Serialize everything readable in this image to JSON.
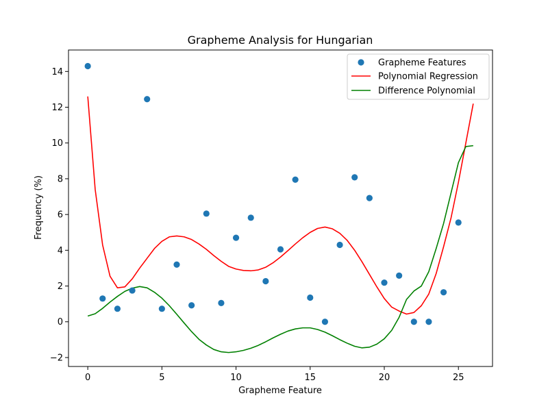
{
  "chart_data": {
    "type": "scatter",
    "title": "Grapheme Analysis for Hungarian",
    "xlabel": "Grapheme Feature",
    "ylabel": "Frequency (%)",
    "xlim": [
      -1.3,
      27.3
    ],
    "ylim": [
      -2.5,
      15.2
    ],
    "xticks": [
      0,
      5,
      10,
      15,
      20,
      25
    ],
    "yticks": [
      -2,
      0,
      2,
      4,
      6,
      8,
      10,
      12,
      14
    ],
    "grid": false,
    "legend_position": "top-right",
    "colors": {
      "scatter": "#1f77b4",
      "regression": "#ff0000",
      "difference": "#008000"
    },
    "series": [
      {
        "name": "Grapheme Features",
        "kind": "scatter",
        "x": [
          0,
          1,
          2,
          3,
          4,
          5,
          6,
          7,
          8,
          9,
          10,
          11,
          12,
          13,
          14,
          15,
          16,
          17,
          18,
          19,
          20,
          21,
          22,
          23,
          24,
          25
        ],
        "y": [
          14.3,
          1.3,
          0.73,
          1.75,
          12.45,
          0.73,
          3.2,
          0.92,
          6.05,
          1.05,
          4.7,
          5.82,
          2.27,
          4.05,
          7.95,
          1.35,
          0.0,
          4.3,
          8.08,
          6.92,
          2.19,
          2.58,
          0.0,
          0.0,
          1.65,
          5.55
        ]
      },
      {
        "name": "Polynomial Regression",
        "kind": "line",
        "x": [
          0,
          0.5,
          1,
          1.5,
          2,
          2.5,
          3,
          3.5,
          4,
          4.5,
          5,
          5.5,
          6,
          6.5,
          7,
          7.5,
          8,
          8.5,
          9,
          9.5,
          10,
          10.5,
          11,
          11.5,
          12,
          12.5,
          13,
          13.5,
          14,
          14.5,
          15,
          15.5,
          16,
          16.5,
          17,
          17.5,
          18,
          18.5,
          19,
          19.5,
          20,
          20.5,
          21,
          21.5,
          22,
          22.5,
          23,
          23.5,
          24,
          24.5,
          25,
          25.5,
          26
        ],
        "y": [
          12.6,
          7.4,
          4.3,
          2.55,
          1.9,
          1.95,
          2.4,
          3.0,
          3.55,
          4.1,
          4.5,
          4.75,
          4.8,
          4.75,
          4.6,
          4.35,
          4.05,
          3.7,
          3.38,
          3.1,
          2.95,
          2.87,
          2.85,
          2.9,
          3.05,
          3.3,
          3.62,
          3.98,
          4.35,
          4.7,
          5.0,
          5.22,
          5.3,
          5.2,
          4.95,
          4.55,
          4.0,
          3.35,
          2.65,
          1.95,
          1.3,
          0.82,
          0.6,
          0.43,
          0.52,
          0.9,
          1.55,
          2.7,
          4.2,
          5.8,
          7.8,
          10.0,
          12.2
        ]
      },
      {
        "name": "Difference Polynomial",
        "kind": "line",
        "x": [
          0,
          0.5,
          1,
          1.5,
          2,
          2.5,
          3,
          3.5,
          4,
          4.5,
          5,
          5.5,
          6,
          6.5,
          7,
          7.5,
          8,
          8.5,
          9,
          9.5,
          10,
          10.5,
          11,
          11.5,
          12,
          12.5,
          13,
          13.5,
          14,
          14.5,
          15,
          15.5,
          16,
          16.5,
          17,
          17.5,
          18,
          18.5,
          19,
          19.5,
          20,
          20.5,
          21,
          21.5,
          22,
          22.5,
          23,
          23.5,
          24,
          24.5,
          25,
          25.5,
          26
        ],
        "y": [
          0.32,
          0.45,
          0.75,
          1.1,
          1.42,
          1.7,
          1.88,
          1.97,
          1.9,
          1.65,
          1.32,
          0.9,
          0.42,
          -0.07,
          -0.55,
          -0.98,
          -1.3,
          -1.55,
          -1.68,
          -1.72,
          -1.68,
          -1.6,
          -1.48,
          -1.32,
          -1.12,
          -0.9,
          -0.7,
          -0.52,
          -0.4,
          -0.34,
          -0.34,
          -0.43,
          -0.58,
          -0.78,
          -1.0,
          -1.2,
          -1.37,
          -1.46,
          -1.42,
          -1.25,
          -0.95,
          -0.48,
          0.25,
          1.25,
          1.72,
          2.0,
          2.8,
          4.1,
          5.5,
          7.2,
          8.9,
          9.8,
          9.85
        ]
      }
    ]
  }
}
